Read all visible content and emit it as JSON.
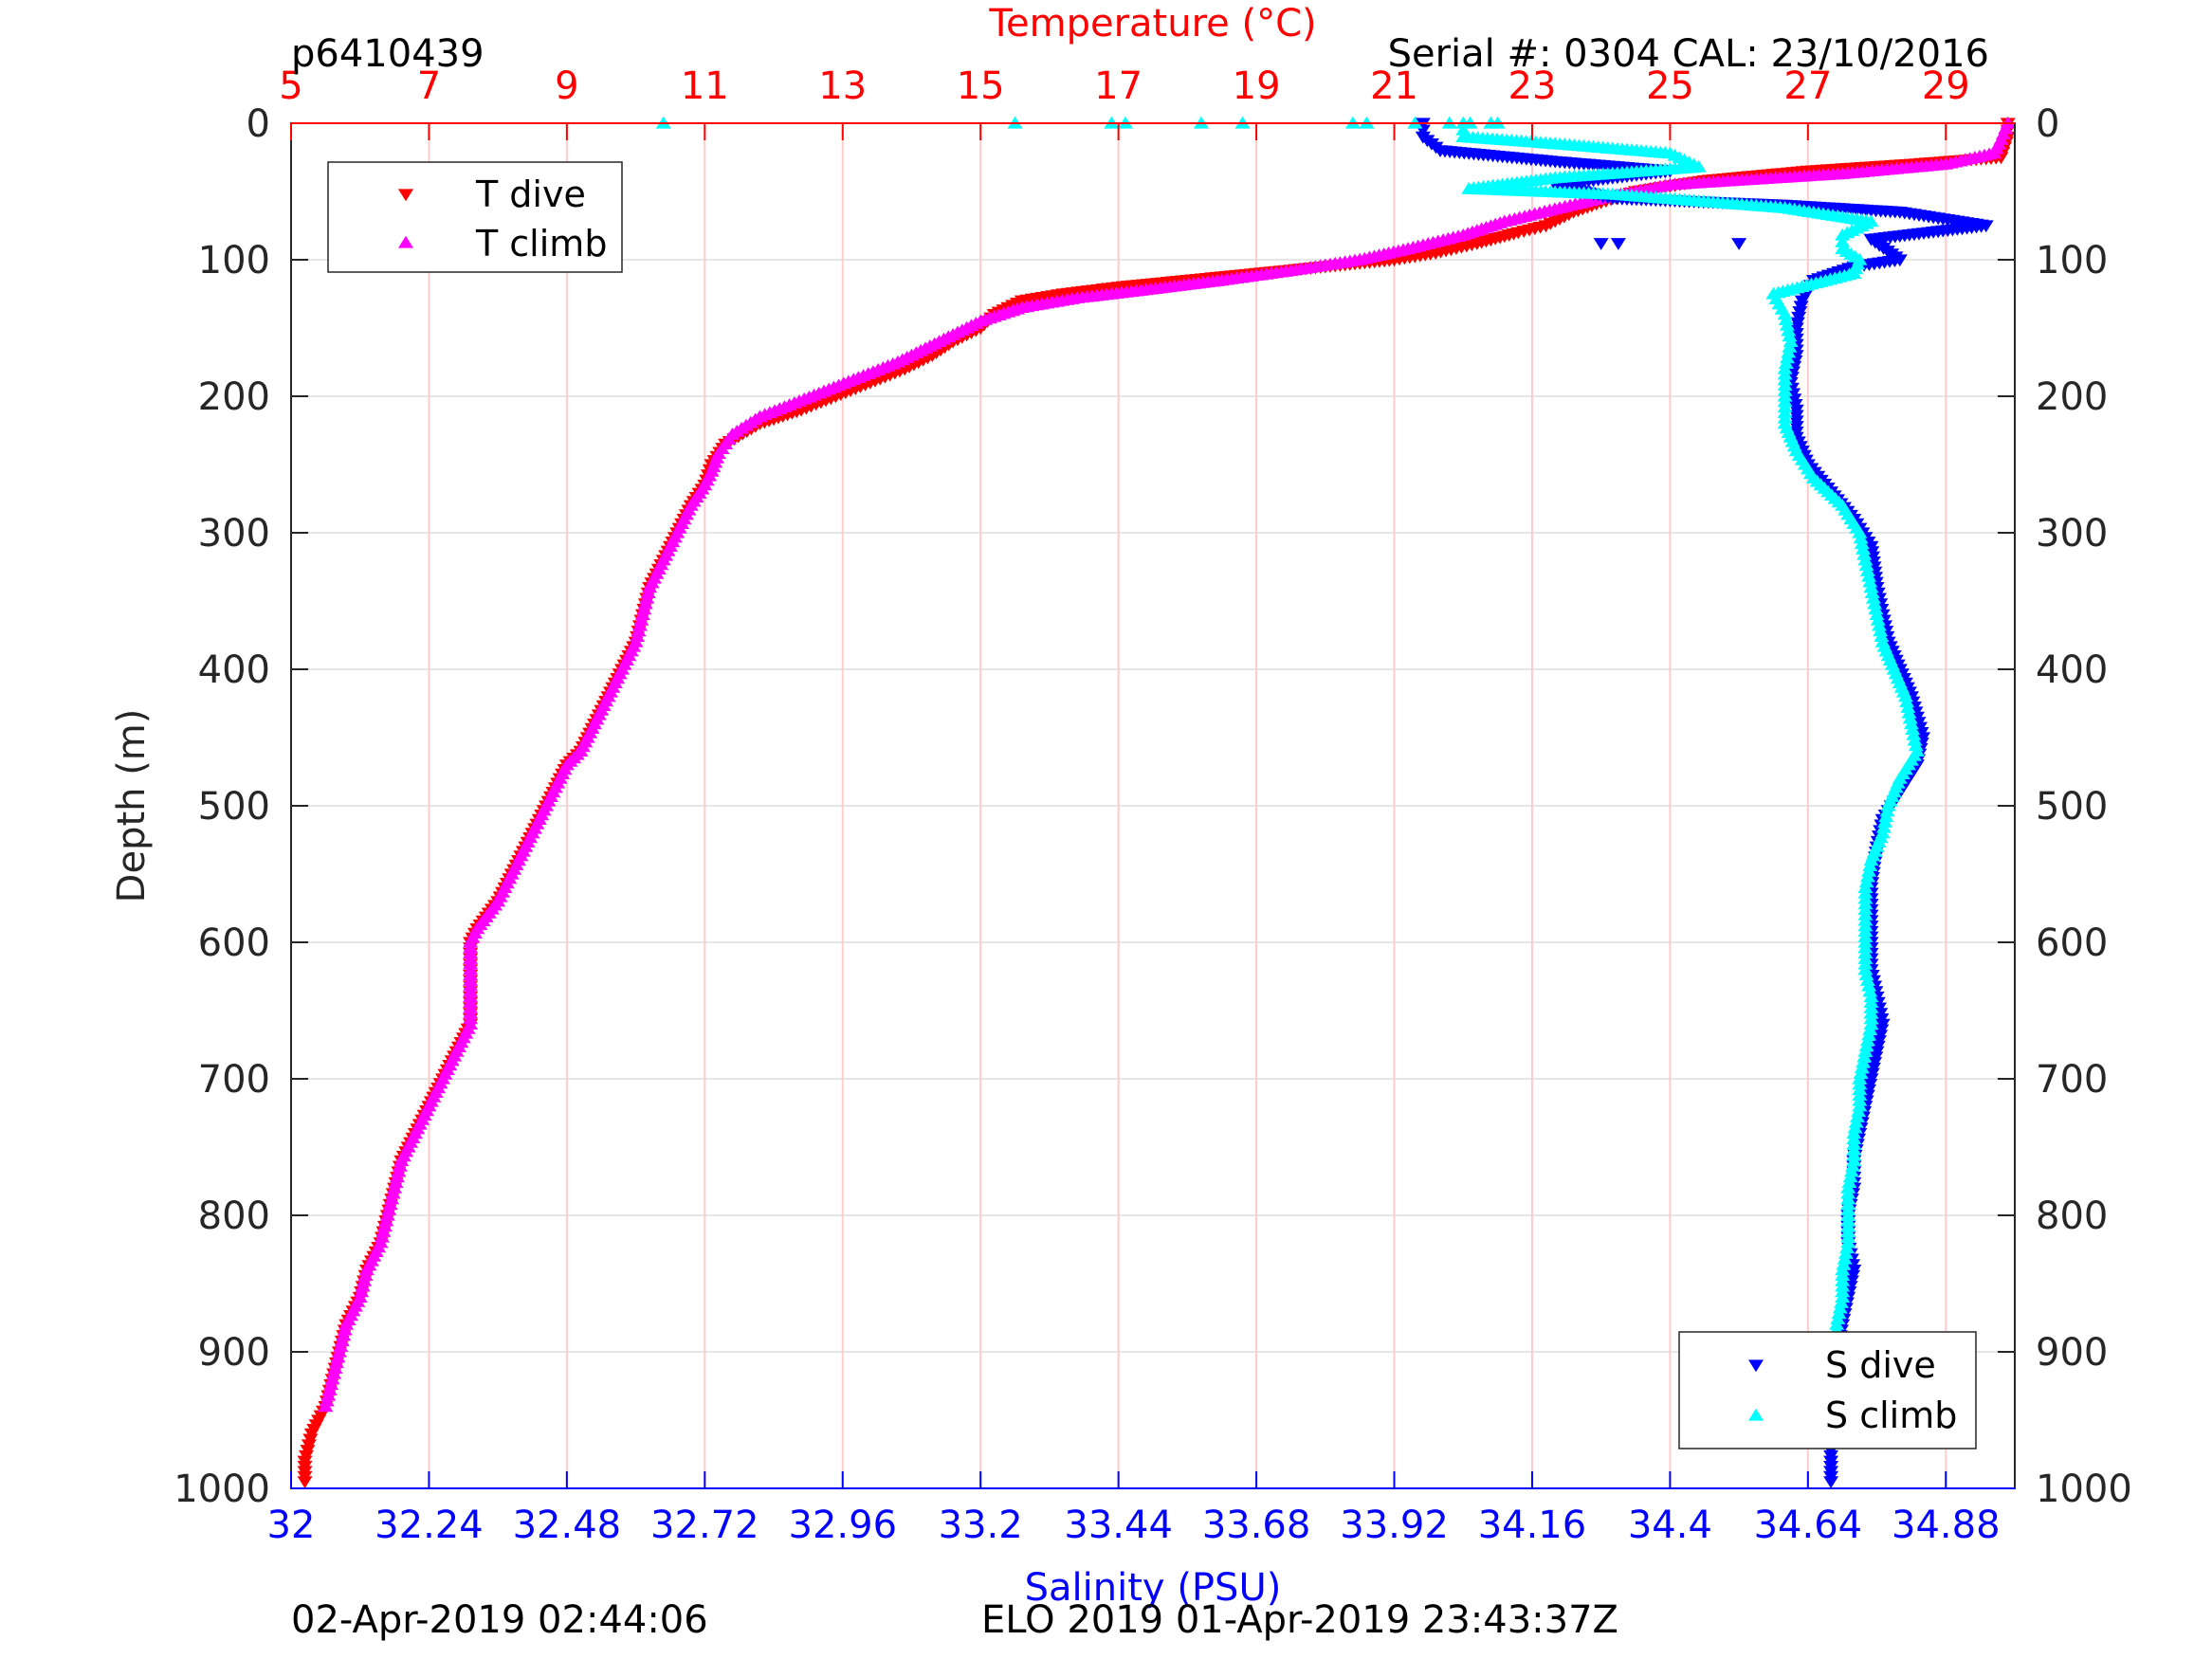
{
  "header": {
    "profile_id": "p6410439",
    "serial": "Serial #: 0304  CAL: 23/10/2016"
  },
  "footer": {
    "left": "02-Apr-2019 02:44:06",
    "center": "ELO 2019 01-Apr-2019 23:43:37Z"
  },
  "colors": {
    "t_dive": "#ff0000",
    "t_climb": "#ff00ff",
    "s_dive": "#0000ff",
    "s_climb": "#00ffff",
    "temp_axis": "#ff0000",
    "sal_axis": "#0000ff",
    "grid": "#e6e6e6",
    "temp_grid": "#ffcccc"
  },
  "chart_data": {
    "type": "scatter",
    "title": "",
    "ylabel": "Depth (m)",
    "y_reversed": true,
    "ylim": [
      0,
      1000
    ],
    "y_ticks": [
      0,
      100,
      200,
      300,
      400,
      500,
      600,
      700,
      800,
      900,
      1000
    ],
    "temperature_axis": {
      "label": "Temperature (°C)",
      "position": "top",
      "lim": [
        5,
        30
      ],
      "ticks": [
        5,
        7,
        9,
        11,
        13,
        15,
        17,
        19,
        21,
        23,
        25,
        27,
        29
      ]
    },
    "salinity_axis": {
      "label": "Salinity (PSU)",
      "position": "bottom",
      "lim": [
        32,
        35
      ],
      "ticks": [
        32,
        32.24,
        32.48,
        32.72,
        32.96,
        33.2,
        33.44,
        33.68,
        33.92,
        34.16,
        34.4,
        34.64,
        34.88
      ]
    },
    "grid": true,
    "legends": [
      {
        "placement": "top-left",
        "entries": [
          "T dive",
          "T climb"
        ]
      },
      {
        "placement": "bottom-right",
        "entries": [
          "S dive",
          "S climb"
        ]
      }
    ],
    "series": [
      {
        "name": "T dive",
        "axis": "temperature",
        "marker": "triangle-down",
        "points": [
          [
            29.9,
            0
          ],
          [
            29.9,
            10
          ],
          [
            29.8,
            25
          ],
          [
            28.5,
            30
          ],
          [
            27.0,
            35
          ],
          [
            25.5,
            42
          ],
          [
            24.5,
            50
          ],
          [
            24.0,
            58
          ],
          [
            23.6,
            65
          ],
          [
            23.2,
            75
          ],
          [
            22.8,
            80
          ],
          [
            22.2,
            88
          ],
          [
            21.6,
            95
          ],
          [
            21.0,
            100
          ],
          [
            20.0,
            105
          ],
          [
            19.0,
            110
          ],
          [
            18.0,
            115
          ],
          [
            17.0,
            120
          ],
          [
            16.2,
            125
          ],
          [
            15.6,
            130
          ],
          [
            15.2,
            140
          ],
          [
            15.0,
            150
          ],
          [
            14.6,
            160
          ],
          [
            14.3,
            170
          ],
          [
            13.9,
            180
          ],
          [
            13.4,
            190
          ],
          [
            12.9,
            200
          ],
          [
            12.4,
            210
          ],
          [
            11.8,
            220
          ],
          [
            11.3,
            235
          ],
          [
            11.1,
            250
          ],
          [
            11.0,
            265
          ],
          [
            10.8,
            280
          ],
          [
            10.6,
            300
          ],
          [
            10.4,
            320
          ],
          [
            10.2,
            340
          ],
          [
            10.1,
            360
          ],
          [
            10.0,
            380
          ],
          [
            9.8,
            400
          ],
          [
            9.6,
            420
          ],
          [
            9.4,
            440
          ],
          [
            9.2,
            460
          ],
          [
            9.0,
            470
          ],
          [
            8.8,
            490
          ],
          [
            8.6,
            510
          ],
          [
            8.3,
            540
          ],
          [
            8.0,
            570
          ],
          [
            7.7,
            590
          ],
          [
            7.6,
            600
          ],
          [
            7.6,
            620
          ],
          [
            7.6,
            640
          ],
          [
            7.6,
            660
          ],
          [
            7.4,
            680
          ],
          [
            7.2,
            700
          ],
          [
            7.0,
            720
          ],
          [
            6.8,
            740
          ],
          [
            6.6,
            760
          ],
          [
            6.5,
            780
          ],
          [
            6.4,
            800
          ],
          [
            6.3,
            820
          ],
          [
            6.1,
            840
          ],
          [
            6.0,
            860
          ],
          [
            5.8,
            880
          ],
          [
            5.7,
            900
          ],
          [
            5.6,
            920
          ],
          [
            5.5,
            940
          ],
          [
            5.3,
            960
          ],
          [
            5.2,
            980
          ],
          [
            5.2,
            995
          ]
        ]
      },
      {
        "name": "T climb",
        "axis": "temperature",
        "marker": "triangle-up",
        "points": [
          [
            29.9,
            0
          ],
          [
            29.8,
            12
          ],
          [
            29.7,
            22
          ],
          [
            29.0,
            30
          ],
          [
            27.5,
            37
          ],
          [
            25.0,
            45
          ],
          [
            24.0,
            55
          ],
          [
            23.4,
            62
          ],
          [
            22.6,
            72
          ],
          [
            22.0,
            82
          ],
          [
            21.2,
            92
          ],
          [
            20.5,
            100
          ],
          [
            19.5,
            108
          ],
          [
            18.5,
            115
          ],
          [
            17.4,
            122
          ],
          [
            16.4,
            128
          ],
          [
            15.6,
            135
          ],
          [
            15.0,
            145
          ],
          [
            14.6,
            155
          ],
          [
            14.2,
            165
          ],
          [
            13.8,
            175
          ],
          [
            13.3,
            185
          ],
          [
            12.8,
            195
          ],
          [
            12.3,
            205
          ],
          [
            11.8,
            215
          ],
          [
            11.4,
            228
          ],
          [
            11.2,
            242
          ],
          [
            11.1,
            255
          ],
          [
            11.0,
            265
          ],
          [
            10.8,
            280
          ],
          [
            10.6,
            300
          ],
          [
            10.4,
            320
          ],
          [
            10.2,
            340
          ],
          [
            10.1,
            360
          ],
          [
            10.0,
            380
          ],
          [
            9.8,
            400
          ],
          [
            9.6,
            420
          ],
          [
            9.4,
            440
          ],
          [
            9.2,
            460
          ],
          [
            9.0,
            470
          ],
          [
            8.8,
            490
          ],
          [
            8.6,
            510
          ],
          [
            8.3,
            540
          ],
          [
            8.0,
            570
          ],
          [
            7.7,
            590
          ],
          [
            7.6,
            600
          ],
          [
            7.6,
            620
          ],
          [
            7.6,
            640
          ],
          [
            7.6,
            660
          ],
          [
            7.4,
            680
          ],
          [
            7.2,
            700
          ],
          [
            7.0,
            720
          ],
          [
            6.8,
            740
          ],
          [
            6.6,
            760
          ],
          [
            6.5,
            780
          ],
          [
            6.4,
            800
          ],
          [
            6.3,
            820
          ],
          [
            6.1,
            840
          ],
          [
            6.0,
            860
          ],
          [
            5.8,
            880
          ],
          [
            5.7,
            900
          ],
          [
            5.6,
            920
          ],
          [
            5.5,
            940
          ]
        ]
      },
      {
        "name": "S dive",
        "axis": "salinity",
        "marker": "triangle-down",
        "points": [
          [
            33.97,
            0
          ],
          [
            33.97,
            10
          ],
          [
            34.0,
            20
          ],
          [
            34.2,
            28
          ],
          [
            34.4,
            35
          ],
          [
            34.2,
            45
          ],
          [
            34.3,
            55
          ],
          [
            34.6,
            60
          ],
          [
            34.8,
            65
          ],
          [
            34.95,
            75
          ],
          [
            34.75,
            85
          ],
          [
            34.8,
            100
          ],
          [
            34.72,
            105
          ],
          [
            34.65,
            115
          ],
          [
            34.63,
            130
          ],
          [
            34.62,
            150
          ],
          [
            34.62,
            170
          ],
          [
            34.61,
            190
          ],
          [
            34.62,
            210
          ],
          [
            34.62,
            230
          ],
          [
            34.64,
            250
          ],
          [
            34.68,
            270
          ],
          [
            34.72,
            290
          ],
          [
            34.75,
            310
          ],
          [
            34.76,
            340
          ],
          [
            34.77,
            360
          ],
          [
            34.78,
            380
          ],
          [
            34.8,
            400
          ],
          [
            34.82,
            420
          ],
          [
            34.84,
            450
          ],
          [
            34.83,
            470
          ],
          [
            34.8,
            490
          ],
          [
            34.77,
            510
          ],
          [
            34.76,
            530
          ],
          [
            34.75,
            560
          ],
          [
            34.75,
            580
          ],
          [
            34.75,
            600
          ],
          [
            34.75,
            620
          ],
          [
            34.76,
            640
          ],
          [
            34.77,
            660
          ],
          [
            34.76,
            680
          ],
          [
            34.75,
            700
          ],
          [
            34.74,
            720
          ],
          [
            34.73,
            740
          ],
          [
            34.72,
            760
          ],
          [
            34.72,
            780
          ],
          [
            34.71,
            800
          ],
          [
            34.71,
            820
          ],
          [
            34.72,
            840
          ],
          [
            34.71,
            860
          ],
          [
            34.7,
            880
          ],
          [
            34.69,
            900
          ],
          [
            34.68,
            920
          ],
          [
            34.68,
            940
          ],
          [
            34.68,
            960
          ],
          [
            34.68,
            980
          ],
          [
            34.68,
            995
          ]
        ]
      },
      {
        "name": "S climb",
        "axis": "salinity",
        "marker": "triangle-up",
        "points": [
          [
            34.04,
            0
          ],
          [
            34.04,
            10
          ],
          [
            34.2,
            15
          ],
          [
            34.4,
            22
          ],
          [
            34.45,
            32
          ],
          [
            34.2,
            40
          ],
          [
            34.05,
            48
          ],
          [
            34.3,
            52
          ],
          [
            34.6,
            62
          ],
          [
            34.75,
            72
          ],
          [
            34.7,
            82
          ],
          [
            34.7,
            92
          ],
          [
            34.73,
            100
          ],
          [
            34.72,
            110
          ],
          [
            34.58,
            125
          ],
          [
            34.6,
            140
          ],
          [
            34.61,
            160
          ],
          [
            34.6,
            180
          ],
          [
            34.6,
            200
          ],
          [
            34.6,
            220
          ],
          [
            34.62,
            240
          ],
          [
            34.65,
            260
          ],
          [
            34.7,
            280
          ],
          [
            34.73,
            300
          ],
          [
            34.74,
            320
          ],
          [
            34.75,
            340
          ],
          [
            34.76,
            360
          ],
          [
            34.77,
            380
          ],
          [
            34.79,
            400
          ],
          [
            34.81,
            420
          ],
          [
            34.82,
            440
          ],
          [
            34.83,
            460
          ],
          [
            34.8,
            480
          ],
          [
            34.78,
            500
          ],
          [
            34.77,
            520
          ],
          [
            34.75,
            540
          ],
          [
            34.74,
            560
          ],
          [
            34.74,
            580
          ],
          [
            34.74,
            600
          ],
          [
            34.74,
            620
          ],
          [
            34.75,
            640
          ],
          [
            34.75,
            660
          ],
          [
            34.74,
            680
          ],
          [
            34.73,
            700
          ],
          [
            34.73,
            720
          ],
          [
            34.72,
            740
          ],
          [
            34.72,
            760
          ],
          [
            34.71,
            780
          ],
          [
            34.71,
            800
          ],
          [
            34.71,
            820
          ],
          [
            34.7,
            840
          ],
          [
            34.7,
            860
          ],
          [
            34.69,
            880
          ],
          [
            34.69,
            900
          ],
          [
            34.68,
            920
          ],
          [
            34.68,
            940
          ]
        ]
      }
    ],
    "surface_outliers": [
      {
        "series": "S climb",
        "axis": "temperature",
        "depth": 0,
        "values": [
          10.4,
          15.5,
          16.9,
          17.1,
          18.2,
          18.8,
          20.4,
          20.6,
          21.3,
          21.8,
          22.1,
          22.4,
          22.5
        ]
      }
    ],
    "scattered_outliers": [
      {
        "series": "S dive",
        "axis": "salinity",
        "depth": 88,
        "values": [
          34.28,
          34.31,
          34.52
        ]
      }
    ]
  }
}
